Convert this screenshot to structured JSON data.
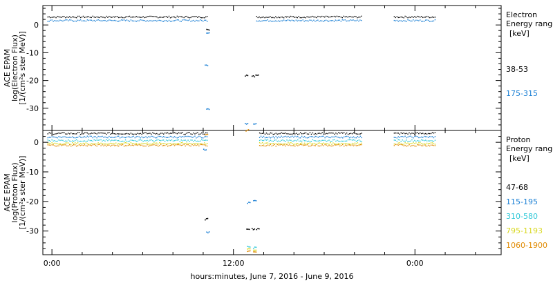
{
  "chart_data": [
    {
      "type": "scatter",
      "panel": "electron",
      "ylabel_lines": [
        "ACE EPAM",
        "log(Electron Flux)",
        "[1/(cm²s ster MeV)]"
      ],
      "ylim": [
        -38,
        7
      ],
      "yticks": [
        0,
        -10,
        -20,
        -30
      ],
      "legend": {
        "title": "Electron",
        "subtitle": "Energy range",
        "unit": "[keV]"
      },
      "series": [
        {
          "name": "38-53",
          "color": "#000000",
          "segments": [
            {
              "x": [
                -0.3,
                10.3
              ],
              "y": 2.9
            },
            {
              "x": [
                13.5,
                20.5
              ],
              "y": 2.9
            },
            {
              "x": [
                22.6,
                25.3
              ],
              "y": 2.9
            }
          ],
          "points": [
            [
              10.2,
              -1.6
            ],
            [
              12.75,
              -18.2
            ],
            [
              13.2,
              -18.5
            ],
            [
              13.45,
              -18.0
            ]
          ]
        },
        {
          "name": "175-315",
          "color": "#1a7fd4",
          "segments": [
            {
              "x": [
                -0.3,
                10.3
              ],
              "y": 1.6
            },
            {
              "x": [
                13.5,
                20.5
              ],
              "y": 1.6
            },
            {
              "x": [
                22.6,
                25.3
              ],
              "y": 1.6
            }
          ],
          "points": [
            [
              10.2,
              -2.7
            ],
            [
              10.1,
              -14.5
            ],
            [
              10.2,
              -30.2
            ],
            [
              12.75,
              -35.5
            ],
            [
              13.3,
              -35.8
            ]
          ]
        }
      ]
    },
    {
      "type": "scatter",
      "panel": "proton",
      "ylabel_lines": [
        "ACE EPAM",
        "log(Proton Flux)",
        "[1/(cm²s ster MeV)]"
      ],
      "ylim": [
        -38,
        4
      ],
      "yticks": [
        0,
        -10,
        -20,
        -30
      ],
      "legend": {
        "title": "Proton",
        "subtitle": "Energy range",
        "unit": "[keV]"
      },
      "xlabel": "hours:minutes, June  7, 2016 - June  9, 2016",
      "xlim": [
        -0.6,
        29.7
      ],
      "xticks": [
        {
          "value": 0,
          "label": "0:00"
        },
        {
          "value": 12,
          "label": "12:00"
        },
        {
          "value": 24,
          "label": "0:00"
        }
      ],
      "series": [
        {
          "name": "47-68",
          "color": "#000000",
          "segments": [
            {
              "x": [
                -0.3,
                10.3
              ],
              "y": 3.0
            },
            {
              "x": [
                13.7,
                20.5
              ],
              "y": 3.0
            },
            {
              "x": [
                22.6,
                25.3
              ],
              "y": 3.0
            }
          ],
          "points": [
            [
              10.1,
              -26.0
            ],
            [
              12.85,
              -29.2
            ],
            [
              13.2,
              -29.3
            ],
            [
              13.5,
              -29.4
            ]
          ]
        },
        {
          "name": "115-195",
          "color": "#1a7fd4",
          "segments": [
            {
              "x": [
                -0.3,
                10.3
              ],
              "y": 1.8
            },
            {
              "x": [
                13.7,
                20.5
              ],
              "y": 1.8
            },
            {
              "x": [
                22.6,
                25.3
              ],
              "y": 1.8
            }
          ],
          "points": [
            [
              10.0,
              -2.5
            ],
            [
              10.2,
              -30.5
            ],
            [
              12.9,
              -20.5
            ],
            [
              13.3,
              -19.7
            ]
          ]
        },
        {
          "name": "310-580",
          "color": "#2ec8d8",
          "segments": [
            {
              "x": [
                -0.3,
                10.3
              ],
              "y": 0.6
            },
            {
              "x": [
                13.7,
                20.5
              ],
              "y": 0.6
            },
            {
              "x": [
                22.6,
                25.3
              ],
              "y": 0.6
            }
          ],
          "points": [
            [
              12.9,
              -35.3
            ],
            [
              13.3,
              -35.6
            ]
          ]
        },
        {
          "name": "795-1193",
          "color": "#d8d820",
          "segments": [
            {
              "x": [
                -0.3,
                10.3
              ],
              "y": -0.4
            },
            {
              "x": [
                13.7,
                20.5
              ],
              "y": -0.4
            },
            {
              "x": [
                22.6,
                25.3
              ],
              "y": -0.4
            }
          ],
          "points": [
            [
              12.9,
              -36.2
            ],
            [
              13.3,
              -36.5
            ]
          ]
        },
        {
          "name": "1060-1900",
          "color": "#e08a00",
          "segments": [
            {
              "x": [
                -0.3,
                10.3
              ],
              "y": -1.0
            },
            {
              "x": [
                13.7,
                20.5
              ],
              "y": -1.0
            },
            {
              "x": [
                22.6,
                25.3
              ],
              "y": -1.0
            }
          ],
          "points": [
            [
              10.1,
              2.6
            ],
            [
              12.8,
              4.0
            ],
            [
              12.9,
              -36.8
            ],
            [
              13.3,
              -37.0
            ]
          ]
        }
      ]
    }
  ]
}
